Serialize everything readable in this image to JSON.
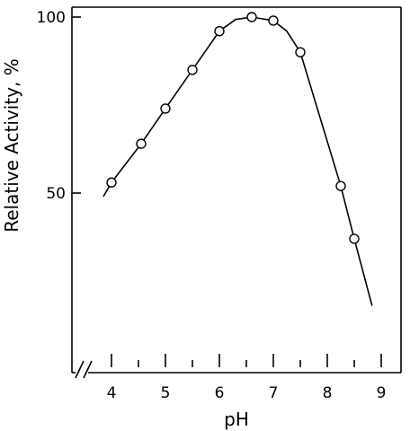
{
  "chart_data": {
    "type": "line",
    "title": "",
    "xlabel": "pH",
    "ylabel": "Relative Activity, %",
    "xlim": [
      3.3,
      9.2
    ],
    "ylim": [
      0,
      102
    ],
    "x_ticks": [
      "4",
      "5",
      "6",
      "7",
      "8",
      "9"
    ],
    "x_minor_ticks": [
      4.5,
      5.5,
      6.5,
      7.5,
      8.5
    ],
    "y_ticks": [
      "50",
      "100"
    ],
    "axis_break": "x-axis near origin",
    "grid": false,
    "legend": "none",
    "series": [
      {
        "points": [
          {
            "x": 4.0,
            "y": 53
          },
          {
            "x": 4.55,
            "y": 64
          },
          {
            "x": 5.0,
            "y": 74
          },
          {
            "x": 5.5,
            "y": 85
          },
          {
            "x": 6.0,
            "y": 96
          },
          {
            "x": 6.6,
            "y": 100
          },
          {
            "x": 7.0,
            "y": 99
          },
          {
            "x": 7.5,
            "y": 90
          },
          {
            "x": 8.25,
            "y": 52
          },
          {
            "x": 8.5,
            "y": 37
          }
        ],
        "curve": [
          {
            "x": 3.85,
            "y": 49
          },
          {
            "x": 4.0,
            "y": 53
          },
          {
            "x": 4.55,
            "y": 64
          },
          {
            "x": 5.0,
            "y": 74
          },
          {
            "x": 5.5,
            "y": 85
          },
          {
            "x": 6.0,
            "y": 96
          },
          {
            "x": 6.3,
            "y": 99.3
          },
          {
            "x": 6.6,
            "y": 100
          },
          {
            "x": 7.0,
            "y": 99
          },
          {
            "x": 7.25,
            "y": 96
          },
          {
            "x": 7.5,
            "y": 90
          },
          {
            "x": 8.25,
            "y": 52
          },
          {
            "x": 8.5,
            "y": 37
          },
          {
            "x": 8.83,
            "y": 18
          }
        ]
      }
    ],
    "marker": "open-circle",
    "line_color": "#000000"
  }
}
